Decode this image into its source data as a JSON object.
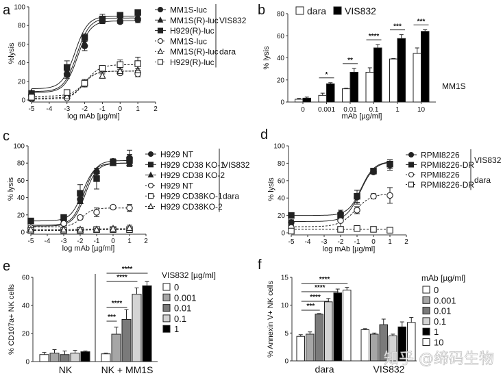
{
  "watermark": "知乎 @缔码生物",
  "chart_data": [
    {
      "panel": "a",
      "type": "line",
      "xlabel": "log mAb [µg/ml]",
      "ylabel": "%lysis",
      "xlim": [
        -5,
        2
      ],
      "ylim": [
        0,
        100
      ],
      "xticks": [
        "-5",
        "-4",
        "-3",
        "-2",
        "-1",
        "0",
        "1",
        "2"
      ],
      "yticks": [
        "0",
        "20",
        "40",
        "60",
        "80",
        "100"
      ],
      "groups": [
        {
          "label": "VIS832",
          "members": [
            0,
            1,
            2
          ]
        },
        {
          "label": "dara",
          "members": [
            3,
            4,
            5
          ]
        }
      ],
      "series": [
        {
          "name": "MM1S-luc",
          "marker": "circle",
          "filled": true,
          "fit": "solid",
          "x": [
            -5,
            -3,
            -2,
            -1,
            0,
            1
          ],
          "y": [
            6,
            27,
            58,
            85,
            84,
            86
          ],
          "err": [
            2,
            4,
            5,
            2,
            2,
            3
          ],
          "fit_params": {
            "bottom": 8,
            "top": 85,
            "ec50": -2.4,
            "hill": 1.2
          }
        },
        {
          "name": "MM1S(R)-luc",
          "marker": "triangle",
          "filled": true,
          "fit": "solid",
          "x": [
            -5,
            -3,
            -2,
            -1,
            0,
            1
          ],
          "y": [
            8,
            31,
            61,
            86,
            88,
            90
          ],
          "err": [
            2,
            5,
            4,
            3,
            2,
            2
          ],
          "fit_params": {
            "bottom": 9,
            "top": 88,
            "ec50": -2.45,
            "hill": 1.2
          }
        },
        {
          "name": "H929(R)-luc",
          "marker": "square",
          "filled": true,
          "fit": "solid",
          "x": [
            -5,
            -3,
            -2,
            -1,
            0,
            1
          ],
          "y": [
            7,
            35,
            67,
            87,
            91,
            94
          ],
          "err": [
            2,
            7,
            4,
            5,
            2,
            2
          ],
          "fit_params": {
            "bottom": 12,
            "top": 90,
            "ec50": -2.55,
            "hill": 1.2
          }
        },
        {
          "name": "MM1S-luc",
          "marker": "circle",
          "filled": false,
          "fit": "dashed",
          "x": [
            -5,
            -3,
            -2,
            -1,
            0,
            1
          ],
          "y": [
            1,
            2,
            17,
            33,
            29,
            28
          ],
          "err": [
            1,
            1,
            2,
            3,
            2,
            3
          ],
          "fit_params": {
            "bottom": 1,
            "top": 31,
            "ec50": -2.1,
            "hill": 1.3
          }
        },
        {
          "name": "MM1S(R)-luc",
          "marker": "triangle",
          "filled": false,
          "fit": "dashed",
          "x": [
            -5,
            -3,
            -2,
            -1,
            0,
            1
          ],
          "y": [
            2,
            4,
            18,
            26,
            31,
            32
          ],
          "err": [
            1,
            1,
            2,
            2,
            2,
            2
          ],
          "fit_params": {
            "bottom": 2,
            "top": 31,
            "ec50": -2.1,
            "hill": 1.3
          }
        },
        {
          "name": "H929(R)-luc",
          "marker": "square",
          "filled": false,
          "fit": "dashed",
          "x": [
            -5,
            -3,
            -2,
            -1,
            0,
            1
          ],
          "y": [
            3,
            8,
            18,
            34,
            38,
            39
          ],
          "err": [
            1,
            1,
            4,
            3,
            5,
            7
          ],
          "fit_params": {
            "bottom": 4,
            "top": 38,
            "ec50": -1.9,
            "hill": 1.1
          }
        }
      ]
    },
    {
      "panel": "b",
      "type": "bar",
      "xlabel": "mAb [µg/ml]",
      "ylabel": "% lysis",
      "ylim": [
        0,
        80
      ],
      "yticks": [
        "0",
        "20",
        "40",
        "60",
        "80"
      ],
      "categories": [
        "0",
        "0.001",
        "0.01",
        "0.1",
        "1",
        "10"
      ],
      "annotation": "MM1S",
      "series": [
        {
          "name": "dara",
          "color": "#ffffff",
          "values": [
            2.5,
            6,
            12,
            27,
            39,
            44
          ],
          "err": [
            0.8,
            2,
            0.5,
            4,
            0.4,
            5
          ]
        },
        {
          "name": "VIS832",
          "color": "#000000",
          "values": [
            3.5,
            16.5,
            27,
            49,
            57.5,
            64
          ],
          "err": [
            1,
            1,
            3.5,
            3,
            3.5,
            1.5
          ]
        }
      ],
      "significance": [
        "",
        "*",
        "**",
        "****",
        "***",
        "***"
      ]
    },
    {
      "panel": "c",
      "type": "line",
      "xlabel": "log mAb [µg/ml]",
      "ylabel": "% lysis",
      "xlim": [
        -5,
        2
      ],
      "ylim": [
        0,
        100
      ],
      "xticks": [
        "-5",
        "-4",
        "-3",
        "-2",
        "-1",
        "0",
        "1",
        "2"
      ],
      "yticks": [
        "0",
        "20",
        "40",
        "60",
        "80",
        "100"
      ],
      "groups": [
        {
          "label": "VIS832",
          "members": [
            0,
            1,
            2
          ]
        },
        {
          "label": "dara",
          "members": [
            3,
            4,
            5
          ]
        }
      ],
      "series": [
        {
          "name": "H929 NT",
          "marker": "circle",
          "filled": true,
          "fit": "solid",
          "x": [
            -5,
            -3,
            -2,
            -1,
            0,
            1
          ],
          "y": [
            4,
            14,
            38,
            70,
            82,
            86
          ],
          "err": [
            1,
            2,
            4,
            4,
            3,
            9
          ],
          "fit_params": {
            "bottom": 8,
            "top": 83,
            "ec50": -1.75,
            "hill": 1.2
          }
        },
        {
          "name": "H929 CD38 KO-1",
          "marker": "square",
          "filled": true,
          "fit": "solid",
          "x": [
            -5,
            -3,
            -2,
            -1,
            0,
            1
          ],
          "y": [
            13,
            17,
            45,
            62,
            81,
            83
          ],
          "err": [
            2,
            2,
            10,
            12,
            2,
            7
          ],
          "fit_params": {
            "bottom": 13,
            "top": 80,
            "ec50": -1.85,
            "hill": 1.2
          }
        },
        {
          "name": "H929 CD38 KO-2",
          "marker": "triangle",
          "filled": true,
          "fit": "solid",
          "x": [
            -5,
            -3,
            -2,
            -1,
            0,
            1
          ],
          "y": [
            5,
            12,
            36,
            71,
            80,
            80
          ],
          "err": [
            1,
            2,
            3,
            3,
            2,
            4
          ],
          "fit_params": {
            "bottom": 7,
            "top": 80,
            "ec50": -1.7,
            "hill": 1.2
          }
        },
        {
          "name": "H929 NT",
          "marker": "circle",
          "filled": false,
          "fit": "dashed",
          "x": [
            -5,
            -3,
            -2,
            -1,
            0,
            1
          ],
          "y": [
            5,
            10,
            17,
            23,
            29,
            28
          ],
          "err": [
            1,
            2,
            2,
            5,
            2,
            4
          ],
          "fit_params": {
            "bottom": 6,
            "top": 28,
            "ec50": -1.9,
            "hill": 1.3
          }
        },
        {
          "name": "H929 CD38KO-1",
          "marker": "square",
          "filled": false,
          "fit": "dashed",
          "x": [
            -5,
            -3,
            -2,
            -1,
            0,
            1
          ],
          "y": [
            2,
            2,
            2,
            3,
            3,
            3
          ],
          "err": [
            0.5,
            0.5,
            0.5,
            1,
            1,
            2
          ],
          "fit_params": {
            "bottom": 2,
            "top": 3,
            "ec50": -1.5,
            "hill": 1
          }
        },
        {
          "name": "H929 CD38KO-2",
          "marker": "triangle",
          "filled": false,
          "fit": "dashed",
          "x": [
            -5,
            -3,
            -2,
            -1,
            0,
            1
          ],
          "y": [
            3,
            3,
            3,
            3,
            4,
            5
          ],
          "err": [
            0.5,
            0.5,
            0.5,
            1,
            1,
            3
          ],
          "fit_params": {
            "bottom": 3,
            "top": 4,
            "ec50": -1.5,
            "hill": 1
          }
        }
      ]
    },
    {
      "panel": "d",
      "type": "line",
      "xlabel": "log mAb [µg/ml]",
      "ylabel": "% lysis",
      "xlim": [
        -5,
        2
      ],
      "ylim": [
        0,
        100
      ],
      "xticks": [
        "-5",
        "-4",
        "-3",
        "-2",
        "-1",
        "0",
        "1",
        "2"
      ],
      "yticks": [
        "0",
        "20",
        "40",
        "60",
        "80",
        "100"
      ],
      "groups": [
        {
          "label": "VIS832",
          "members": [
            0,
            1
          ]
        },
        {
          "label": "dara",
          "members": [
            2,
            3
          ]
        }
      ],
      "series": [
        {
          "name": "RPMI8226",
          "marker": "circle",
          "filled": true,
          "fit": "solid",
          "x": [
            -5,
            -2,
            -1,
            0,
            1
          ],
          "y": [
            12,
            22,
            41,
            70,
            78
          ],
          "err": [
            3,
            4,
            8,
            2,
            6
          ],
          "fit_params": {
            "bottom": 13,
            "top": 82,
            "ec50": -0.8,
            "hill": 1.0
          }
        },
        {
          "name": "RPMI8226-DR",
          "marker": "square",
          "filled": true,
          "fit": "solid",
          "x": [
            -5,
            -2,
            -1,
            0,
            1
          ],
          "y": [
            20,
            20,
            42,
            71,
            79
          ],
          "err": [
            1,
            3,
            7,
            2,
            5
          ],
          "fit_params": {
            "bottom": 20,
            "top": 82,
            "ec50": -0.75,
            "hill": 1.1
          }
        },
        {
          "name": "RPMI8226",
          "marker": "circle",
          "filled": false,
          "fit": "dashed",
          "x": [
            -5,
            -2,
            -1,
            0,
            1
          ],
          "y": [
            6,
            14,
            26,
            42,
            43
          ],
          "err": [
            2,
            8,
            4,
            3,
            9
          ],
          "fit_params": {
            "bottom": 7,
            "top": 45,
            "ec50": -1.1,
            "hill": 0.9
          }
        },
        {
          "name": "RPMI8226-DR",
          "marker": "square",
          "filled": false,
          "fit": "dashed",
          "x": [
            -5,
            -2,
            -1,
            0,
            1
          ],
          "y": [
            2,
            4,
            5,
            4,
            3
          ],
          "err": [
            0.5,
            1,
            1,
            1,
            1
          ],
          "fit_params": {
            "bottom": 4,
            "top": 4,
            "ec50": -1,
            "hill": 1
          }
        }
      ]
    },
    {
      "panel": "e",
      "type": "bar",
      "ylabel": "% CD107a+ NK cells",
      "ylim": [
        0,
        60
      ],
      "yticks": [
        "0",
        "20",
        "40",
        "60"
      ],
      "categories": [
        "NK",
        "NK + MM1S"
      ],
      "legend_title": "VIS832 [µg/ml]",
      "series": [
        {
          "name": "0",
          "color": "#ffffff",
          "values": [
            5,
            5.5
          ],
          "err": [
            1.5,
            0.5
          ]
        },
        {
          "name": "0.001",
          "color": "#a6a6a6",
          "values": [
            6,
            19.5
          ],
          "err": [
            2.5,
            5
          ]
        },
        {
          "name": "0.01",
          "color": "#7a7a7a",
          "values": [
            5,
            30
          ],
          "err": [
            2.5,
            7
          ]
        },
        {
          "name": "0.1",
          "color": "#d4d4d4",
          "values": [
            6,
            48
          ],
          "err": [
            2,
            4.5
          ]
        },
        {
          "name": "1",
          "color": "#000000",
          "values": [
            7,
            54
          ],
          "err": [
            0.5,
            3
          ]
        }
      ],
      "significance": [
        {
          "group": "NK + MM1S",
          "from": 0,
          "to": 1,
          "label": "***"
        },
        {
          "group": "NK + MM1S",
          "from": 0,
          "to": 2,
          "label": "****"
        },
        {
          "group": "NK + MM1S",
          "from": 0,
          "to": 3,
          "label": "****"
        },
        {
          "group": "NK + MM1S",
          "from": 0,
          "to": 4,
          "label": "****"
        }
      ]
    },
    {
      "panel": "f",
      "type": "bar",
      "ylabel": "% Annexin V+ NK cells",
      "ylim": [
        0,
        15
      ],
      "yticks": [
        "0",
        "5",
        "10",
        "15"
      ],
      "categories": [
        "dara",
        "VIS832"
      ],
      "legend_title": "mAb [µg/ml]",
      "series": [
        {
          "name": "0",
          "color": "#ffffff",
          "values": [
            4.4,
            5.6
          ],
          "err": [
            0.3,
            0.2
          ]
        },
        {
          "name": "0.001",
          "color": "#a6a6a6",
          "values": [
            4.8,
            4.8
          ],
          "err": [
            0.4,
            0.2
          ]
        },
        {
          "name": "0.01",
          "color": "#7a7a7a",
          "values": [
            8.4,
            6.5
          ],
          "err": [
            0.1,
            1.0
          ]
        },
        {
          "name": "0.1",
          "color": "#d4d4d4",
          "values": [
            10.6,
            4.5
          ],
          "err": [
            0.6,
            0.3
          ]
        },
        {
          "name": "1",
          "color": "#000000",
          "values": [
            12.2,
            6.1
          ],
          "err": [
            0.7,
            0.9
          ]
        },
        {
          "name": "10",
          "color": "#ffffff",
          "values": [
            12.7,
            6.9
          ],
          "err": [
            0.5,
            0.9
          ]
        }
      ],
      "significance": [
        {
          "group": "dara",
          "from": 0,
          "to": 2,
          "label": "***"
        },
        {
          "group": "dara",
          "from": 0,
          "to": 3,
          "label": "****"
        },
        {
          "group": "dara",
          "from": 0,
          "to": 4,
          "label": "****"
        },
        {
          "group": "dara",
          "from": 0,
          "to": 5,
          "label": "****"
        }
      ]
    }
  ]
}
